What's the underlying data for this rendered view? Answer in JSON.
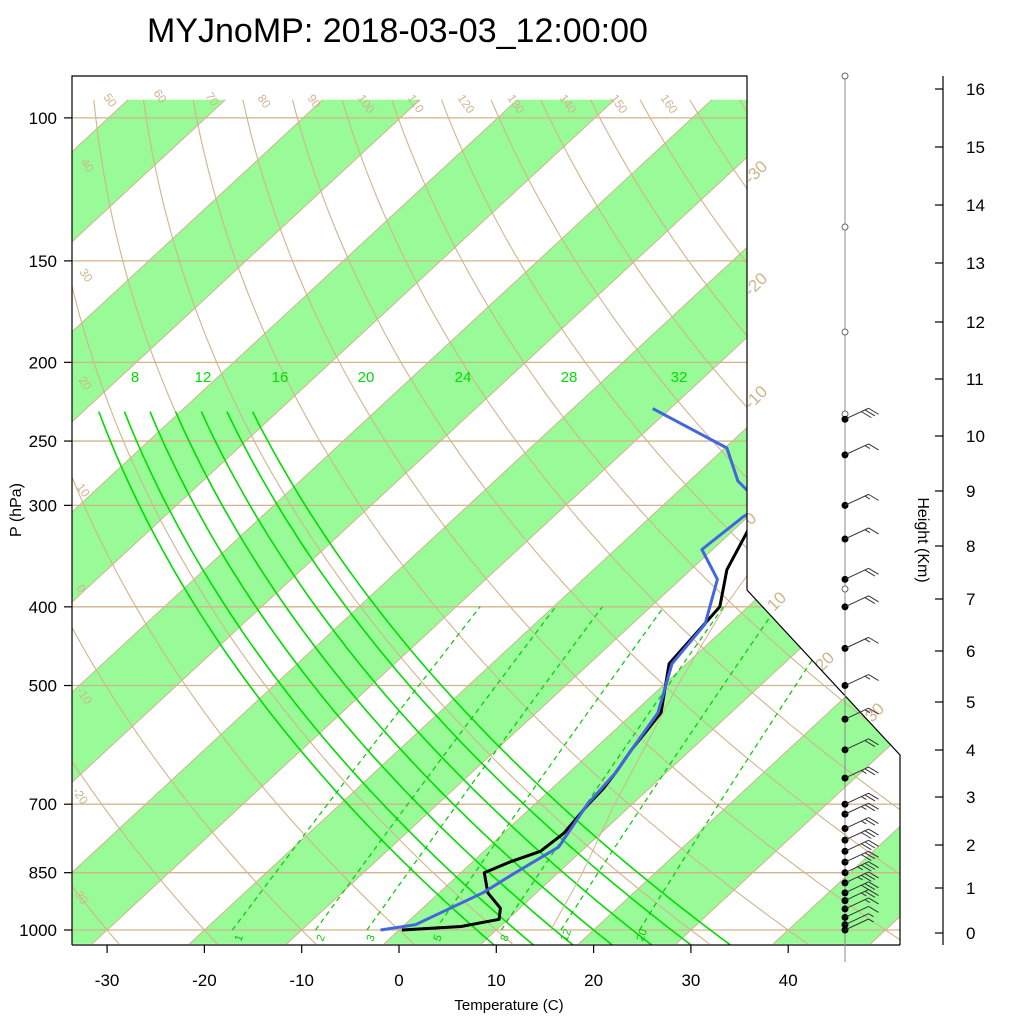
{
  "chart_data": {
    "type": "line",
    "title": "MYJnoMP: 2018-03-03_12:00:00",
    "xlabel": "Temperature (C)",
    "ylabel": "P (hPa)",
    "y2label": "Height (Km)",
    "x_ticks": [
      "-30",
      "-20",
      "-10",
      "0",
      "10",
      "20",
      "30",
      "40"
    ],
    "y_ticks": [
      "100",
      "150",
      "200",
      "250",
      "300",
      "400",
      "500",
      "700",
      "850",
      "1000"
    ],
    "height_ticks": [
      "0",
      "1",
      "2",
      "3",
      "4",
      "5",
      "6",
      "7",
      "8",
      "9",
      "10",
      "11",
      "12",
      "13",
      "14",
      "15",
      "16"
    ],
    "moist_adiabat_labels": [
      "8",
      "12",
      "16",
      "20",
      "24",
      "28",
      "32"
    ],
    "dry_adiabat_labels": [
      "50",
      "60",
      "70",
      "80",
      "90",
      "100",
      "110",
      "120",
      "130",
      "140",
      "150",
      "160",
      "40",
      "30",
      "20",
      "10",
      "0",
      "-10",
      "-20",
      "-30"
    ],
    "isotherm_labels": [
      "-30",
      "-20",
      "-10",
      "0",
      "10",
      "20",
      "30"
    ],
    "mixing_ratio_labels": [
      "1",
      "2",
      "3",
      "5",
      "8",
      "12",
      "20"
    ],
    "grid": true,
    "series": [
      {
        "role": "temperature",
        "color": "#000000",
        "points": [
          [
            1000,
            0.3
          ],
          [
            990,
            6.0
          ],
          [
            970,
            9.1
          ],
          [
            940,
            8.0
          ],
          [
            900,
            5.0
          ],
          [
            850,
            2.4
          ],
          [
            825,
            3.8
          ],
          [
            800,
            5.8
          ],
          [
            760,
            6.2
          ],
          [
            700,
            5.5
          ],
          [
            670,
            5.3
          ],
          [
            640,
            4.8
          ],
          [
            600,
            3.9
          ],
          [
            540,
            2.8
          ],
          [
            470,
            -1.8
          ],
          [
            400,
            -2.9
          ],
          [
            360,
            -6.3
          ],
          [
            300,
            -9.9
          ],
          [
            275,
            -11.2
          ],
          [
            250,
            -8.5
          ],
          [
            228,
            -6.3
          ]
        ]
      },
      {
        "role": "dew point",
        "color": "#4466dd",
        "points": [
          [
            1000,
            -1.9
          ],
          [
            985,
            1.1
          ],
          [
            900,
            4.5
          ],
          [
            850,
            5.6
          ],
          [
            790,
            7.2
          ],
          [
            700,
            5.4
          ],
          [
            640,
            4.8
          ],
          [
            600,
            3.9
          ],
          [
            540,
            2.5
          ],
          [
            470,
            -1.5
          ],
          [
            420,
            -2.5
          ],
          [
            370,
            -6.2
          ],
          [
            340,
            -11.1
          ],
          [
            310,
            -10.5
          ],
          [
            300,
            -9.8
          ],
          [
            280,
            -15.0
          ],
          [
            255,
            -19.8
          ],
          [
            228,
            -31.8
          ]
        ]
      },
      {
        "role": "parcel",
        "color": "#d2b48c",
        "points": [
          [
            1000,
            15.6
          ],
          [
            900,
            13.6
          ],
          [
            850,
            12.5
          ],
          [
            700,
            8.2
          ],
          [
            500,
            1.5
          ],
          [
            400,
            -2.4
          ],
          [
            300,
            -6.2
          ],
          [
            250,
            -7.5
          ],
          [
            228,
            -7.2
          ]
        ]
      }
    ],
    "wind_profile": [
      {
        "p": 1000,
        "speed_kt": 5
      },
      {
        "p": 985,
        "speed_kt": 5
      },
      {
        "p": 965,
        "speed_kt": 10
      },
      {
        "p": 942,
        "speed_kt": 15
      },
      {
        "p": 920,
        "speed_kt": 25
      },
      {
        "p": 900,
        "speed_kt": 30
      },
      {
        "p": 875,
        "speed_kt": 35
      },
      {
        "p": 850,
        "speed_kt": 35
      },
      {
        "p": 825,
        "speed_kt": 30
      },
      {
        "p": 800,
        "speed_kt": 30
      },
      {
        "p": 775,
        "speed_kt": 30
      },
      {
        "p": 750,
        "speed_kt": 25
      },
      {
        "p": 720,
        "speed_kt": 25
      },
      {
        "p": 700,
        "speed_kt": 25
      },
      {
        "p": 650,
        "speed_kt": 25
      },
      {
        "p": 600,
        "speed_kt": 20
      },
      {
        "p": 550,
        "speed_kt": 15
      },
      {
        "p": 500,
        "speed_kt": 15
      },
      {
        "p": 450,
        "speed_kt": 15
      },
      {
        "p": 400,
        "speed_kt": 20
      },
      {
        "p": 370,
        "speed_kt": 20
      },
      {
        "p": 330,
        "speed_kt": 15
      },
      {
        "p": 300,
        "speed_kt": 15
      },
      {
        "p": 260,
        "speed_kt": 15
      },
      {
        "p": 235,
        "speed_kt": 30
      }
    ]
  },
  "colors": {
    "moist_band": "#98fb98",
    "moist_adiabat": "#00dd00",
    "tan": "#d2b48c",
    "temperature": "#000000",
    "dewpoint": "#4466dd"
  }
}
